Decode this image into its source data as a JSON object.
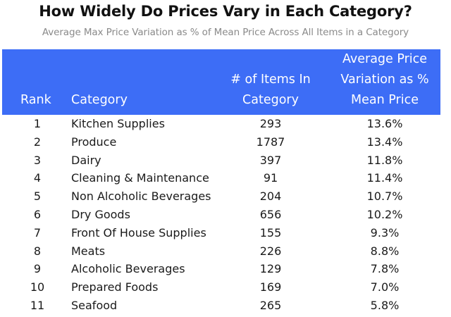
{
  "title": "How Widely Do Prices Vary in Each Category?",
  "subtitle": "Average Max Price Variation as % of Mean Price Across All Items in a Category",
  "colors": {
    "header_bg": "#3d6df6",
    "header_text": "#ffffff"
  },
  "chart_data": {
    "type": "table",
    "title": "How Widely Do Prices Vary in Each Category?",
    "subtitle": "Average Max Price Variation as % of Mean Price Across All Items in a Category",
    "columns": {
      "rank": "Rank",
      "category": "Category",
      "items": [
        "# of Items In",
        "Category"
      ],
      "variation": [
        "Average Price",
        "Variation as %",
        "Mean Price"
      ]
    },
    "rows": [
      {
        "rank": "1",
        "category": "Kitchen Supplies",
        "items": "293",
        "variation": "13.6%"
      },
      {
        "rank": "2",
        "category": "Produce",
        "items": "1787",
        "variation": "13.4%"
      },
      {
        "rank": "3",
        "category": "Dairy",
        "items": "397",
        "variation": "11.8%"
      },
      {
        "rank": "4",
        "category": "Cleaning & Maintenance",
        "items": "91",
        "variation": "11.4%"
      },
      {
        "rank": "5",
        "category": "Non Alcoholic Beverages",
        "items": "204",
        "variation": "10.7%"
      },
      {
        "rank": "6",
        "category": "Dry Goods",
        "items": "656",
        "variation": "10.2%"
      },
      {
        "rank": "7",
        "category": "Front Of House Supplies",
        "items": "155",
        "variation": "9.3%"
      },
      {
        "rank": "8",
        "category": "Meats",
        "items": "226",
        "variation": "8.8%"
      },
      {
        "rank": "9",
        "category": "Alcoholic Beverages",
        "items": "129",
        "variation": "7.8%"
      },
      {
        "rank": "10",
        "category": "Prepared Foods",
        "items": "169",
        "variation": "7.0%"
      },
      {
        "rank": "11",
        "category": "Seafood",
        "items": "265",
        "variation": "5.8%"
      }
    ]
  }
}
